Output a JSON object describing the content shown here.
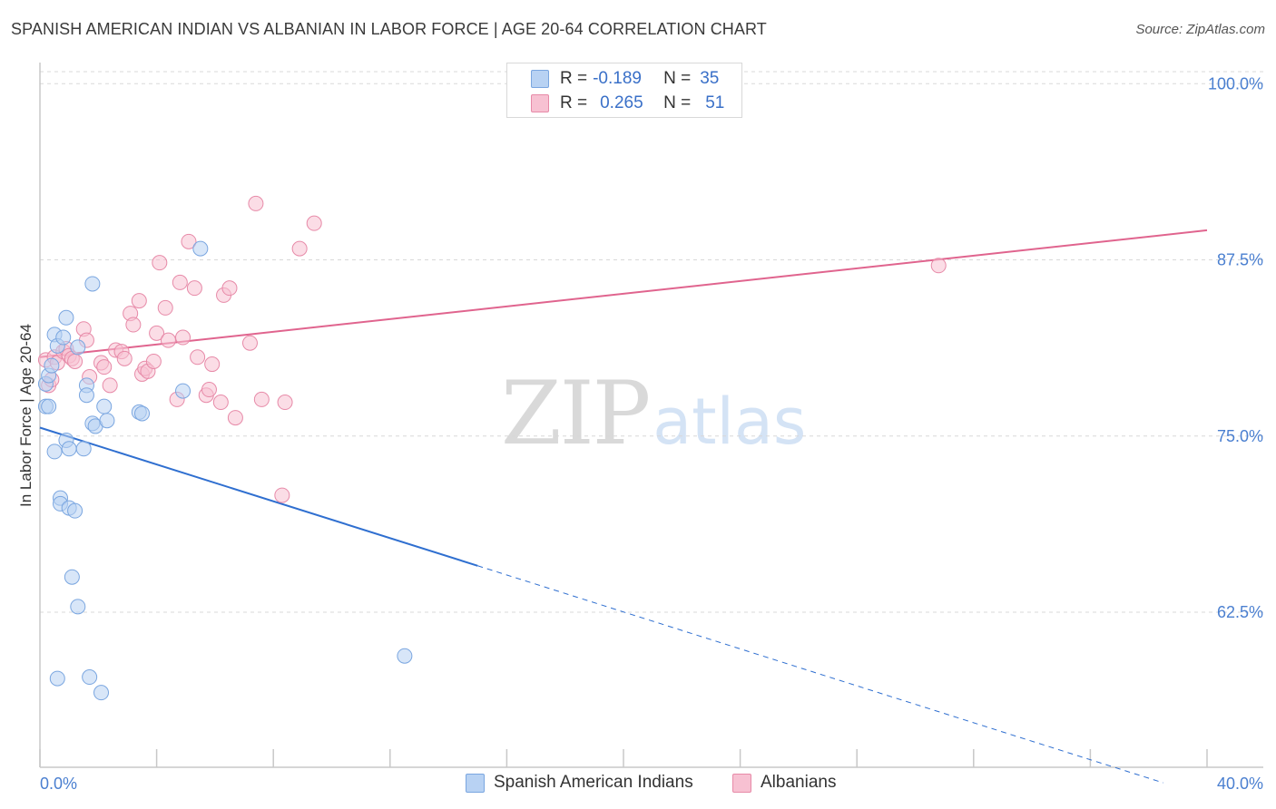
{
  "title": "SPANISH AMERICAN INDIAN VS ALBANIAN IN LABOR FORCE | AGE 20-64 CORRELATION CHART",
  "source": "Source: ZipAtlas.com",
  "watermark": {
    "zip": "ZIP",
    "atlas": "atlas"
  },
  "legend": {
    "rows": [
      {
        "r_label": "R =",
        "r_value": "-0.189",
        "n_label": "N =",
        "n_value": "35"
      },
      {
        "r_label": "R =",
        "r_value": "0.265",
        "n_label": "N =",
        "n_value": "51"
      }
    ]
  },
  "bottom_legend": [
    "Spanish American Indians",
    "Albanians"
  ],
  "colors": {
    "blue_fill": "#b8d2f3",
    "blue_stroke": "#7aa6e0",
    "blue_line": "#2f6fd0",
    "pink_fill": "#f7c1d2",
    "pink_stroke": "#e78aa8",
    "pink_line": "#e0648e",
    "grid": "#d8d8d8",
    "axis": "#c8c8c8",
    "tick_label": "#4a7fd0"
  },
  "chart_data": {
    "type": "scatter",
    "title": "SPANISH AMERICAN INDIAN VS ALBANIAN IN LABOR FORCE | AGE 20-64 CORRELATION CHART",
    "xlabel": "",
    "ylabel": "In Labor Force | Age 20-64",
    "xlim": [
      0,
      40
    ],
    "ylim": [
      51.5,
      101.5
    ],
    "x_tick_labels": [
      "0.0%",
      "40.0%"
    ],
    "y_ticks": [
      62.5,
      75.0,
      87.5,
      100.0
    ],
    "y_tick_labels": [
      "62.5%",
      "75.0%",
      "87.5%",
      "100.0%"
    ],
    "grid": true,
    "legend_position": "top-center",
    "series": [
      {
        "name": "Spanish American Indians",
        "points": [
          [
            0.2,
            78.7
          ],
          [
            0.2,
            77.1
          ],
          [
            0.3,
            77.1
          ],
          [
            0.3,
            79.3
          ],
          [
            0.4,
            80.0
          ],
          [
            0.5,
            82.2
          ],
          [
            0.6,
            81.4
          ],
          [
            0.5,
            73.9
          ],
          [
            0.6,
            57.8
          ],
          [
            0.7,
            70.6
          ],
          [
            0.7,
            70.2
          ],
          [
            0.8,
            82.0
          ],
          [
            0.9,
            83.4
          ],
          [
            0.9,
            74.7
          ],
          [
            1.0,
            74.1
          ],
          [
            1.0,
            69.9
          ],
          [
            1.1,
            65.0
          ],
          [
            1.2,
            69.7
          ],
          [
            1.3,
            81.3
          ],
          [
            1.3,
            62.9
          ],
          [
            1.5,
            74.1
          ],
          [
            1.6,
            78.6
          ],
          [
            1.6,
            77.9
          ],
          [
            1.7,
            57.9
          ],
          [
            1.8,
            85.8
          ],
          [
            1.8,
            75.9
          ],
          [
            1.9,
            75.7
          ],
          [
            2.1,
            56.8
          ],
          [
            2.2,
            77.1
          ],
          [
            2.3,
            76.1
          ],
          [
            3.4,
            76.7
          ],
          [
            3.5,
            76.6
          ],
          [
            4.9,
            78.2
          ],
          [
            5.5,
            88.3
          ],
          [
            12.5,
            59.4
          ]
        ],
        "trend": {
          "x": [
            0,
            15
          ],
          "y": [
            75.6,
            65.8
          ],
          "dashed_x": [
            15,
            38.5
          ],
          "dashed_y": [
            65.8,
            50.4
          ]
        }
      },
      {
        "name": "Albanians",
        "points": [
          [
            0.2,
            80.4
          ],
          [
            0.3,
            78.6
          ],
          [
            0.4,
            79.0
          ],
          [
            0.5,
            80.6
          ],
          [
            0.6,
            80.2
          ],
          [
            0.8,
            81.0
          ],
          [
            0.9,
            81.2
          ],
          [
            1.0,
            80.7
          ],
          [
            1.1,
            80.5
          ],
          [
            1.2,
            80.3
          ],
          [
            1.5,
            82.6
          ],
          [
            1.6,
            81.8
          ],
          [
            1.7,
            79.2
          ],
          [
            2.1,
            80.2
          ],
          [
            2.2,
            79.9
          ],
          [
            2.4,
            78.6
          ],
          [
            2.6,
            81.1
          ],
          [
            2.8,
            81.0
          ],
          [
            2.9,
            80.5
          ],
          [
            3.1,
            83.7
          ],
          [
            3.2,
            82.9
          ],
          [
            3.4,
            84.6
          ],
          [
            3.5,
            79.4
          ],
          [
            3.6,
            79.8
          ],
          [
            3.7,
            79.6
          ],
          [
            3.9,
            80.3
          ],
          [
            4.0,
            82.3
          ],
          [
            4.1,
            87.3
          ],
          [
            4.3,
            84.1
          ],
          [
            4.4,
            81.8
          ],
          [
            4.7,
            77.6
          ],
          [
            4.8,
            85.9
          ],
          [
            4.9,
            82.0
          ],
          [
            5.1,
            88.8
          ],
          [
            5.3,
            85.5
          ],
          [
            5.4,
            80.6
          ],
          [
            5.7,
            77.9
          ],
          [
            5.8,
            78.3
          ],
          [
            5.9,
            80.1
          ],
          [
            6.2,
            77.4
          ],
          [
            6.3,
            85.0
          ],
          [
            6.5,
            85.5
          ],
          [
            6.7,
            76.3
          ],
          [
            7.2,
            81.6
          ],
          [
            7.4,
            91.5
          ],
          [
            7.6,
            77.6
          ],
          [
            8.3,
            70.8
          ],
          [
            8.4,
            77.4
          ],
          [
            8.9,
            88.3
          ],
          [
            9.4,
            90.1
          ],
          [
            30.8,
            87.1
          ]
        ],
        "trend": {
          "x": [
            0,
            40
          ],
          "y": [
            80.6,
            89.6
          ]
        }
      }
    ]
  }
}
